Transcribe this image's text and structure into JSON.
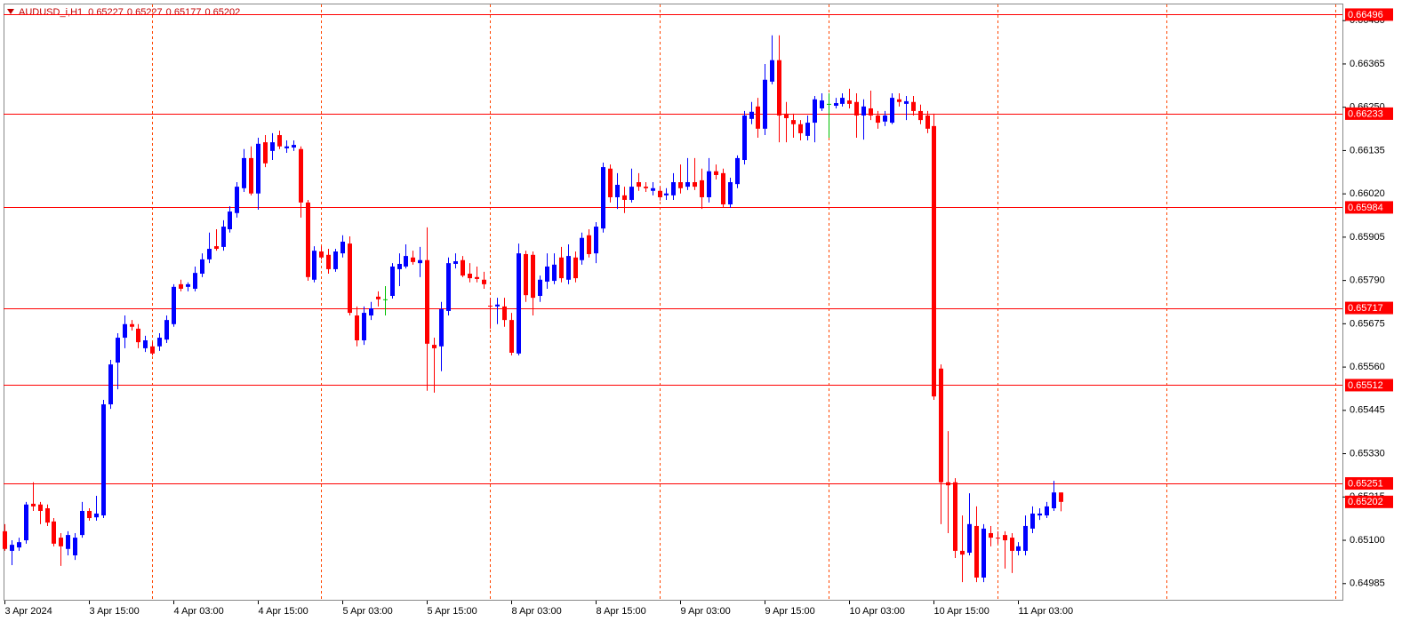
{
  "chart_data": {
    "type": "candlestick",
    "title": "AUDUSD_i,H1",
    "categories": [
      "3 Apr 2024",
      null,
      null,
      null,
      null,
      null,
      null,
      null,
      null,
      null,
      null,
      null,
      "3 Apr 15:00",
      null,
      null,
      null,
      null,
      null,
      null,
      null,
      null,
      null,
      null,
      null,
      "4 Apr 03:00",
      null,
      null,
      null,
      null,
      null,
      null,
      null,
      null,
      null,
      null,
      null,
      "4 Apr 15:00",
      null,
      null,
      null,
      null,
      null,
      null,
      null,
      null,
      null,
      null,
      null,
      "5 Apr 03:00",
      null,
      null,
      null,
      null,
      null,
      null,
      null,
      null,
      null,
      null,
      null,
      "5 Apr 15:00",
      null,
      null,
      null,
      null,
      null,
      null,
      null,
      null,
      null,
      null,
      null,
      "8 Apr 03:00",
      null,
      null,
      null,
      null,
      null,
      null,
      null,
      null,
      null,
      null,
      null,
      "8 Apr 15:00",
      null,
      null,
      null,
      null,
      null,
      null,
      null,
      null,
      null,
      null,
      null,
      "9 Apr 03:00",
      null,
      null,
      null,
      null,
      null,
      null,
      null,
      null,
      null,
      null,
      null,
      "9 Apr 15:00",
      null,
      null,
      null,
      null,
      null,
      null,
      null,
      null,
      null,
      null,
      null,
      "10 Apr 03:00",
      null,
      null,
      null,
      null,
      null,
      null,
      null,
      null,
      null,
      null,
      null,
      "10 Apr 15:00",
      null,
      null,
      null,
      null,
      null,
      null,
      null,
      null,
      null,
      null,
      null,
      "11 Apr 03:00",
      null,
      null,
      null,
      null,
      null,
      null
    ],
    "open": [
      0.65124,
      0.65072,
      0.65081,
      0.651,
      0.65197,
      0.65195,
      0.65185,
      0.6515,
      0.65107,
      0.65077,
      0.6506,
      0.65114,
      0.65178,
      0.65161,
      0.65166,
      0.65461,
      0.65572,
      0.65638,
      0.65674,
      0.65662,
      0.6561,
      0.65615,
      0.65615,
      0.65633,
      0.65674,
      0.6578,
      0.65773,
      0.65768,
      0.65808,
      0.65846,
      0.65881,
      0.65879,
      0.65926,
      0.65969,
      0.66035,
      0.66115,
      0.66021,
      0.66157,
      0.66134,
      0.66176,
      0.66141,
      0.66143,
      0.66139,
      0.65997,
      0.65792,
      0.65867,
      0.65858,
      0.6582,
      0.65862,
      0.65888,
      0.65697,
      0.65631,
      0.65697,
      0.65747,
      0.6574,
      0.65749,
      0.6582,
      0.65827,
      0.65851,
      0.65836,
      0.65844,
      0.65619,
      0.65615,
      0.65709,
      0.65834,
      0.65844,
      0.65808,
      0.65799,
      0.65792,
      0.65723,
      0.65721,
      0.65721,
      0.65685,
      0.65596,
      0.6586,
      0.65858,
      0.65749,
      0.65787,
      0.65789,
      0.65851,
      0.65792,
      0.65851,
      0.65844,
      0.6591,
      0.65862,
      0.65928,
      0.66087,
      0.66011,
      0.66016,
      0.66004,
      0.66051,
      0.66039,
      0.66028,
      0.66028,
      0.66016,
      0.66016,
      0.66051,
      0.66039,
      0.66051,
      0.66056,
      0.66011,
      0.6608,
      0.66075,
      0.65992,
      0.66046,
      0.6611,
      0.66219,
      0.66252,
      0.66193,
      0.66318,
      0.66375,
      0.66233,
      0.66216,
      0.66205,
      0.66174,
      0.66209,
      0.66247,
      0.66259,
      0.66254,
      0.66259,
      0.66268,
      0.66264,
      0.66228,
      0.66247,
      0.66228,
      0.66212,
      0.66209,
      0.66271,
      0.66259,
      0.66264,
      0.6624,
      0.66228,
      0.662,
      0.65556,
      0.65254,
      0.65254,
      0.65072,
      0.65067,
      0.65138,
      0.65001,
      0.65119,
      0.65107,
      0.65114,
      0.65107,
      0.65072,
      0.65072,
      0.65131,
      0.65166,
      0.65166,
      0.65185,
      0.65227
    ],
    "high": [
      0.65143,
      0.651,
      0.65107,
      0.65202,
      0.65254,
      0.65202,
      0.65195,
      0.65159,
      0.65119,
      0.65124,
      0.65119,
      0.65202,
      0.65185,
      0.65218,
      0.65473,
      0.65579,
      0.6565,
      0.65697,
      0.65685,
      0.65674,
      0.65643,
      0.65626,
      0.6565,
      0.65697,
      0.6578,
      0.65792,
      0.65785,
      0.65827,
      0.65862,
      0.65917,
      0.65926,
      0.6595,
      0.65987,
      0.66051,
      0.66139,
      0.66146,
      0.66169,
      0.66176,
      0.66181,
      0.66188,
      0.66162,
      0.66162,
      0.66146,
      0.66004,
      0.65881,
      0.65881,
      0.65874,
      0.65874,
      0.6591,
      0.65907,
      0.65721,
      0.65721,
      0.65733,
      0.65761,
      0.65775,
      0.65836,
      0.65862,
      0.65886,
      0.65869,
      0.65879,
      0.65931,
      0.65638,
      0.65733,
      0.65851,
      0.65862,
      0.65855,
      0.65836,
      0.65827,
      0.65813,
      0.65744,
      0.65744,
      0.65744,
      0.65704,
      0.65888,
      0.65869,
      0.65867,
      0.65803,
      0.65862,
      0.65862,
      0.65879,
      0.65886,
      0.65867,
      0.65917,
      0.65926,
      0.65945,
      0.66103,
      0.66098,
      0.66075,
      0.66039,
      0.66087,
      0.66075,
      0.66051,
      0.66051,
      0.66039,
      0.66035,
      0.66075,
      0.66098,
      0.66115,
      0.66115,
      0.66087,
      0.66115,
      0.66098,
      0.66087,
      0.66063,
      0.66122,
      0.6624,
      0.66264,
      0.66275,
      0.66365,
      0.66441,
      0.66441,
      0.66264,
      0.66233,
      0.66216,
      0.66228,
      0.6628,
      0.66287,
      0.66287,
      0.66275,
      0.66287,
      0.66299,
      0.66287,
      0.66271,
      0.66294,
      0.6624,
      0.6624,
      0.66287,
      0.66287,
      0.6628,
      0.6628,
      0.66257,
      0.6624,
      0.66233,
      0.65567,
      0.6539,
      0.65265,
      0.65166,
      0.65225,
      0.6519,
      0.65143,
      0.65138,
      0.65124,
      0.65124,
      0.65119,
      0.65095,
      0.65166,
      0.6519,
      0.65185,
      0.65202,
      0.65258,
      0.65227
    ],
    "low": [
      0.65072,
      0.65034,
      0.65072,
      0.65091,
      0.65178,
      0.65143,
      0.65138,
      0.65084,
      0.65032,
      0.6506,
      0.65048,
      0.65107,
      0.65152,
      0.65152,
      0.65159,
      0.65449,
      0.65501,
      0.6561,
      0.65657,
      0.6561,
      0.656,
      0.65591,
      0.65603,
      0.65624,
      0.65667,
      0.65761,
      0.65761,
      0.65761,
      0.65799,
      0.65836,
      0.65869,
      0.65869,
      0.65917,
      0.65957,
      0.66025,
      0.66016,
      0.65978,
      0.66091,
      0.6611,
      0.66139,
      0.66129,
      0.66134,
      0.65957,
      0.65789,
      0.65785,
      0.65846,
      0.65808,
      0.65813,
      0.65851,
      0.65697,
      0.65615,
      0.65619,
      0.65685,
      0.65721,
      0.65697,
      0.65742,
      0.65775,
      0.65822,
      0.65832,
      0.65799,
      0.65497,
      0.65492,
      0.65549,
      0.65697,
      0.65822,
      0.65799,
      0.65785,
      0.65785,
      0.65768,
      0.65662,
      0.65674,
      0.65667,
      0.65591,
      0.65591,
      0.65733,
      0.65697,
      0.65733,
      0.65768,
      0.6578,
      0.65785,
      0.6578,
      0.65785,
      0.65832,
      0.65851,
      0.65836,
      0.65917,
      0.65997,
      0.6598,
      0.65969,
      0.65997,
      0.66028,
      0.66025,
      0.66016,
      0.66002,
      0.66004,
      0.66004,
      0.66021,
      0.6603,
      0.6603,
      0.6598,
      0.65997,
      0.66058,
      0.65983,
      0.65983,
      0.66035,
      0.66098,
      0.66205,
      0.66169,
      0.66176,
      0.66311,
      0.66157,
      0.66157,
      0.66169,
      0.66162,
      0.66162,
      0.66157,
      0.6624,
      0.66169,
      0.66247,
      0.66252,
      0.66247,
      0.66169,
      0.66164,
      0.66216,
      0.66193,
      0.662,
      0.66205,
      0.66252,
      0.66216,
      0.66228,
      0.66205,
      0.66181,
      0.65473,
      0.65143,
      0.65119,
      0.65053,
      0.64989,
      0.6506,
      0.64989,
      0.64989,
      0.65084,
      0.65091,
      0.65025,
      0.65013,
      0.6506,
      0.6506,
      0.65119,
      0.65154,
      0.65159,
      0.65178,
      0.65177
    ],
    "close": [
      0.65077,
      0.65088,
      0.65095,
      0.65195,
      0.6519,
      0.65178,
      0.65147,
      0.65091,
      0.65084,
      0.65114,
      0.65107,
      0.65178,
      0.65159,
      0.65171,
      0.65461,
      0.65567,
      0.65638,
      0.65674,
      0.65667,
      0.65626,
      0.65631,
      0.65596,
      0.65638,
      0.65685,
      0.65773,
      0.65768,
      0.6578,
      0.6581,
      0.65846,
      0.65874,
      0.65874,
      0.65933,
      0.65973,
      0.66039,
      0.66115,
      0.66021,
      0.66153,
      0.66101,
      0.66157,
      0.66146,
      0.66146,
      0.6615,
      0.65997,
      0.65799,
      0.65869,
      0.65851,
      0.6582,
      0.65867,
      0.65893,
      0.65704,
      0.65631,
      0.65704,
      0.65716,
      0.6574,
      0.6574,
      0.65827,
      0.65834,
      0.65855,
      0.65839,
      0.65844,
      0.65622,
      0.6561,
      0.65714,
      0.65836,
      0.65841,
      0.65803,
      0.65796,
      0.65794,
      0.6578,
      0.65721,
      0.65726,
      0.65685,
      0.65598,
      0.65862,
      0.65751,
      0.65744,
      0.65792,
      0.65827,
      0.65832,
      0.65796,
      0.65855,
      0.65796,
      0.65903,
      0.6586,
      0.65933,
      0.66091,
      0.66011,
      0.66044,
      0.66004,
      0.66039,
      0.66039,
      0.66035,
      0.66035,
      0.66011,
      0.66021,
      0.66051,
      0.66035,
      0.66051,
      0.66039,
      0.66011,
      0.6608,
      0.6607,
      0.65992,
      0.66051,
      0.66115,
      0.66228,
      0.66238,
      0.66193,
      0.66323,
      0.66375,
      0.66228,
      0.66221,
      0.66205,
      0.66181,
      0.66209,
      0.66271,
      0.66268,
      0.66259,
      0.66261,
      0.66275,
      0.66259,
      0.66228,
      0.66252,
      0.66228,
      0.66209,
      0.66228,
      0.66275,
      0.66264,
      0.66266,
      0.6624,
      0.66216,
      0.66193,
      0.65482,
      0.65254,
      0.65246,
      0.65072,
      0.65062,
      0.65143,
      0.65001,
      0.65131,
      0.65107,
      0.65105,
      0.651,
      0.65072,
      0.65084,
      0.65138,
      0.65171,
      0.65171,
      0.6519,
      0.65227,
      0.65202
    ],
    "ylim": [
      0.64942,
      0.66523
    ],
    "yticks": [
      {
        "value": 0.6648,
        "label": "0.66480"
      },
      0.66365,
      {
        "value": 0.6625,
        "label": "0.66250"
      },
      0.66135,
      {
        "value": 0.6602,
        "label": "0.66020"
      },
      0.65905,
      {
        "value": 0.6579,
        "label": "0.65790"
      },
      0.65675,
      {
        "value": 0.6556,
        "label": "0.65560"
      },
      0.65445,
      {
        "value": 0.6533,
        "label": "0.65330"
      },
      0.65215,
      {
        "value": 0.651,
        "label": "0.65100"
      },
      0.64985
    ],
    "levels": [
      0.66496,
      0.66233,
      0.65984,
      0.65717,
      0.65512,
      0.65251
    ],
    "up_color": "#0000ff",
    "down_color": "#ff0000",
    "doji_color": "#00c000",
    "level_color": "#ff0000",
    "grid_color": "#ff4500",
    "grid": true
  }
}
